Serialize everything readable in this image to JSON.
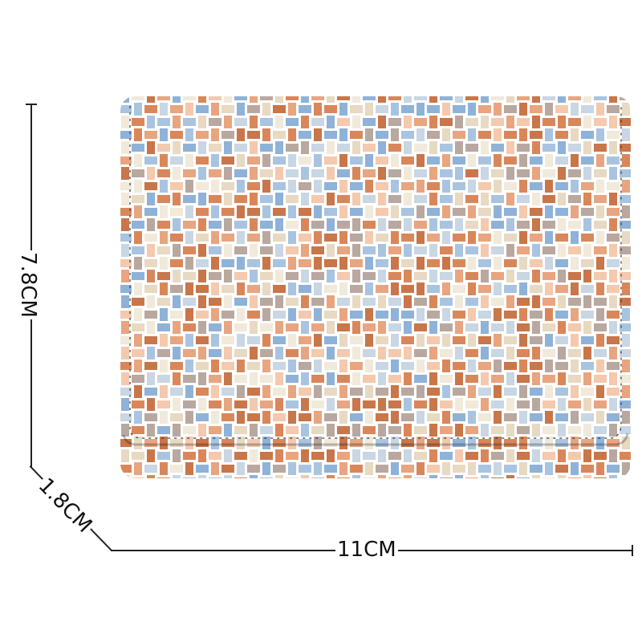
{
  "dimensions": {
    "height": "7.8CM",
    "depth": "1.8CM",
    "width": "11CM"
  },
  "product": {
    "weave_palette": [
      "#d9875a",
      "#c8764a",
      "#e8a57f",
      "#a9c4e0",
      "#8fb2d8",
      "#f1e9da",
      "#e7d9c2",
      "#b9a8a0",
      "#f4c9ad",
      "#c9d6e3"
    ],
    "stitch_color": "#3a3a3a"
  }
}
